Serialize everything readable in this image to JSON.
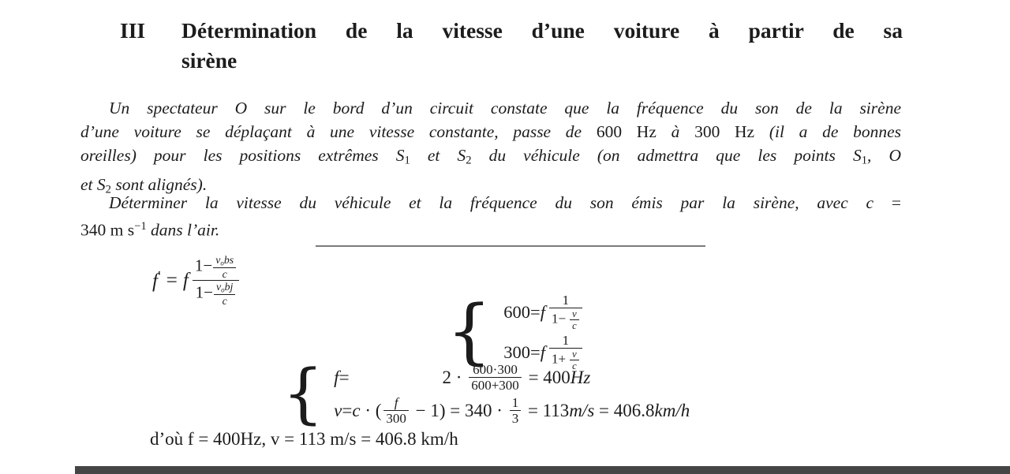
{
  "colors": {
    "background": "#ffffff",
    "text": "#1c1c1c",
    "rule": "#7a7a7a",
    "bottom_bar": "#454545"
  },
  "heading": {
    "number": "III",
    "line1": "Détermination de la vitesse d’une voiture à partir de sa",
    "line2": "sirène"
  },
  "intro": {
    "lines": [
      [
        {
          "t": "Un spectateur O sur le bord d’un circuit constate que la fréquence du son de la sirène",
          "s": "i"
        }
      ],
      [
        {
          "t": "d’une voiture se déplaçant à une vitesse constante, passe de ",
          "s": "i"
        },
        {
          "t": "600 Hz",
          "s": "r"
        },
        {
          "t": " à ",
          "s": "i"
        },
        {
          "t": "300 Hz",
          "s": "r"
        },
        {
          "t": " (il a de bonnes",
          "s": "i"
        }
      ],
      [
        {
          "t": "oreilles) pour les positions extrêmes S",
          "s": "i"
        },
        {
          "t": "1",
          "s": "sub"
        },
        {
          "t": " et S",
          "s": "i"
        },
        {
          "t": "2",
          "s": "sub"
        },
        {
          "t": " du véhicule (on admettra que les points S",
          "s": "i"
        },
        {
          "t": "1",
          "s": "sub"
        },
        {
          "t": ", O",
          "s": "i"
        }
      ],
      [
        {
          "t": "et S",
          "s": "i"
        },
        {
          "t": "2",
          "s": "sub"
        },
        {
          "t": " sont alignés).",
          "s": "i"
        }
      ]
    ]
  },
  "question": {
    "lines": [
      [
        {
          "t": "Déterminer la vitesse du véhicule et la fréquence du son émis par la sirène, avec c",
          "s": "i"
        },
        {
          "t": " =",
          "s": "r"
        }
      ],
      [
        {
          "t": "340 m s",
          "s": "r"
        },
        {
          "t": "−1",
          "s": "sup"
        },
        {
          "t": " dans l’air.",
          "s": "i"
        }
      ]
    ]
  },
  "math": {
    "fprime": {
      "f": "f",
      "prime": "′",
      "eq": "=",
      "f2": "f",
      "num_pre": "1−",
      "num_v": "v",
      "num_vsub": "o",
      "num_vrest": "bs",
      "num_c": "c",
      "den_pre": "1−",
      "den_v": "v",
      "den_vsub": "o",
      "den_vrest": "bj",
      "den_c": "c"
    },
    "system1": {
      "brace": "{",
      "rows": [
        {
          "value": "600",
          "eq": "=",
          "f": "f",
          "num": "1",
          "den_pre": "1−",
          "v": "v",
          "c": "c"
        },
        {
          "value": "300",
          "eq": "=",
          "f": "f",
          "num": "1",
          "den_pre": "1+",
          "v": "v",
          "c": "c"
        }
      ]
    },
    "system2": {
      "brace": "{",
      "row1": {
        "f": "f",
        "eq": "=",
        "coef": "2 · ",
        "num": "600·300",
        "den": "600+300",
        "rhs": " = 400",
        "unit": "Hz"
      },
      "row2": {
        "v": "v",
        "eq": "=",
        "c": "c",
        "open": " · (",
        "num": "f",
        "den": "300",
        "mid": " − 1) = 340 · ",
        "num2": "1",
        "den2": "3",
        "eq2": " = 113",
        "unit1": "m/s",
        "eq3": " = 406.8",
        "unit2": "km/h"
      }
    }
  },
  "conclusion": {
    "text": "d’où f = 400Hz, v = 113 m/s = 406.8 km/h"
  }
}
